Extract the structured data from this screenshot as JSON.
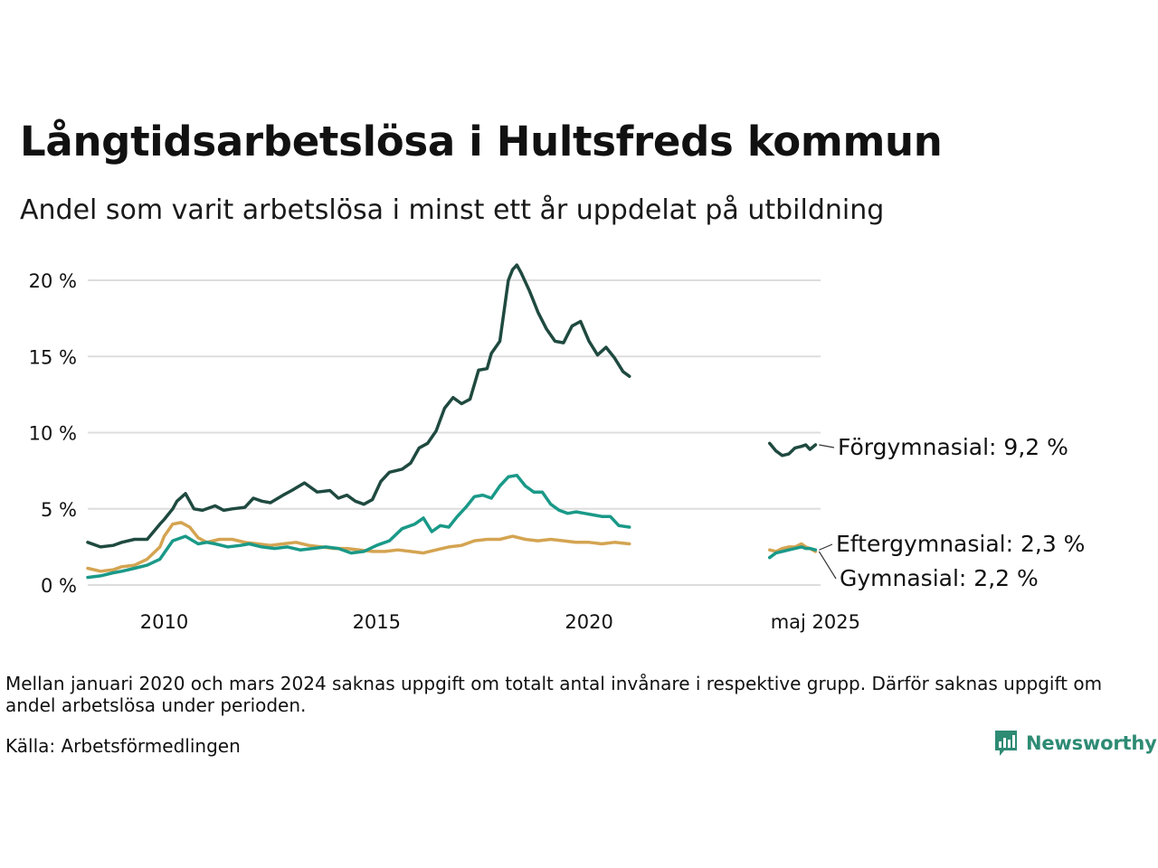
{
  "title": "Långtidsarbetslösa i Hultsfreds kommun",
  "subtitle": "Andel som varit arbetslösa i minst ett år uppdelat på utbildning",
  "note": "Mellan januari 2020 och mars 2024 saknas uppgift om totalt antal invånare i respektive grupp. Därför saknas uppgift om andel arbetslösa under perioden.",
  "source": "Källa: Arbetsförmedlingen",
  "logo_text": "Newsworthy",
  "colors": {
    "forgymnasial": "#1f4a40",
    "eftergymnasial": "#1a9988",
    "gymnasial": "#d4a451",
    "grid": "#dddddd",
    "logo": "#2e8b74"
  },
  "chart_data": {
    "type": "line",
    "ylim": [
      0,
      21
    ],
    "y_ticks": [
      0,
      5,
      10,
      15,
      20
    ],
    "y_tick_labels": [
      "0 %",
      "5 %",
      "10 %",
      "15 %",
      "20 %"
    ],
    "x_tick_labels": [
      "2010",
      "2015",
      "2020",
      "maj 2025"
    ],
    "x_tick_values": [
      2010,
      2015,
      2020,
      2025.33
    ],
    "grid": "horizontal",
    "series": [
      {
        "name": "Förgymnasial",
        "end_label": "Förgymnasial: 9,2 %",
        "segments": [
          {
            "x": [
              2008.2,
              2008.5,
              2008.8,
              2009.0,
              2009.3,
              2009.6,
              2009.9,
              2010.0,
              2010.2,
              2010.3,
              2010.5,
              2010.7,
              2010.9,
              2011.2,
              2011.4,
              2011.6,
              2011.9,
              2012.1,
              2012.3,
              2012.5,
              2012.8,
              2013.0,
              2013.3,
              2013.6,
              2013.9,
              2014.1,
              2014.3,
              2014.5,
              2014.7,
              2014.9,
              2015.1,
              2015.3,
              2015.6,
              2015.8,
              2016.0,
              2016.2,
              2016.4,
              2016.6,
              2016.8,
              2017.0,
              2017.2,
              2017.4,
              2017.6,
              2017.7,
              2017.9,
              2018.0,
              2018.1,
              2018.2,
              2018.3,
              2018.4,
              2018.6,
              2018.8,
              2019.0,
              2019.2,
              2019.4,
              2019.6,
              2019.8,
              2020.0,
              2020.2,
              2020.4,
              2020.6,
              2020.8,
              2020.95
            ],
            "y": [
              2.8,
              2.5,
              2.6,
              2.8,
              3.0,
              3.0,
              4.0,
              4.3,
              5.0,
              5.5,
              6.0,
              5.0,
              4.9,
              5.2,
              4.9,
              5.0,
              5.1,
              5.7,
              5.5,
              5.4,
              5.9,
              6.2,
              6.7,
              6.1,
              6.2,
              5.7,
              5.9,
              5.5,
              5.3,
              5.6,
              6.8,
              7.4,
              7.6,
              8.0,
              9.0,
              9.3,
              10.1,
              11.6,
              12.3,
              11.9,
              12.2,
              14.1,
              14.2,
              15.2,
              16.0,
              18.0,
              20.0,
              20.7,
              21.0,
              20.5,
              19.3,
              17.9,
              16.8,
              16.0,
              15.9,
              17.0,
              17.3,
              16.0,
              15.1,
              15.6,
              14.9,
              14.0,
              13.7
            ]
          },
          {
            "x": [
              2024.25,
              2024.4,
              2024.55,
              2024.7,
              2024.85,
              2025.0,
              2025.1,
              2025.2,
              2025.33
            ],
            "y": [
              9.3,
              8.8,
              8.5,
              8.6,
              9.0,
              9.1,
              9.2,
              8.9,
              9.2
            ]
          }
        ]
      },
      {
        "name": "Eftergymnasial",
        "end_label": "Eftergymnasial: 2,3 %",
        "segments": [
          {
            "x": [
              2008.2,
              2008.5,
              2008.8,
              2009.0,
              2009.3,
              2009.6,
              2009.9,
              2010.0,
              2010.2,
              2010.5,
              2010.8,
              2011.0,
              2011.2,
              2011.5,
              2011.8,
              2012.0,
              2012.3,
              2012.6,
              2012.9,
              2013.2,
              2013.5,
              2013.8,
              2014.1,
              2014.4,
              2014.7,
              2015.0,
              2015.3,
              2015.6,
              2015.9,
              2016.1,
              2016.3,
              2016.5,
              2016.7,
              2016.9,
              2017.1,
              2017.3,
              2017.5,
              2017.7,
              2017.9,
              2018.1,
              2018.3,
              2018.5,
              2018.7,
              2018.9,
              2019.1,
              2019.3,
              2019.5,
              2019.7,
              2019.9,
              2020.1,
              2020.3,
              2020.5,
              2020.7,
              2020.95
            ],
            "y": [
              0.5,
              0.6,
              0.8,
              0.9,
              1.1,
              1.3,
              1.7,
              2.1,
              2.9,
              3.2,
              2.7,
              2.8,
              2.7,
              2.5,
              2.6,
              2.7,
              2.5,
              2.4,
              2.5,
              2.3,
              2.4,
              2.5,
              2.4,
              2.1,
              2.2,
              2.6,
              2.9,
              3.7,
              4.0,
              4.4,
              3.5,
              3.9,
              3.8,
              4.5,
              5.1,
              5.8,
              5.9,
              5.7,
              6.5,
              7.1,
              7.2,
              6.5,
              6.1,
              6.1,
              5.3,
              4.9,
              4.7,
              4.8,
              4.7,
              4.6,
              4.5,
              4.5,
              3.9,
              3.8
            ]
          },
          {
            "x": [
              2024.25,
              2024.4,
              2024.55,
              2024.7,
              2024.85,
              2025.0,
              2025.1,
              2025.2,
              2025.33
            ],
            "y": [
              1.8,
              2.1,
              2.2,
              2.3,
              2.4,
              2.5,
              2.4,
              2.4,
              2.3
            ]
          }
        ]
      },
      {
        "name": "Gymnasial",
        "end_label": "Gymnasial: 2,2 %",
        "segments": [
          {
            "x": [
              2008.2,
              2008.5,
              2008.8,
              2009.0,
              2009.3,
              2009.6,
              2009.9,
              2010.0,
              2010.2,
              2010.4,
              2010.6,
              2010.8,
              2011.0,
              2011.3,
              2011.6,
              2011.9,
              2012.2,
              2012.5,
              2012.8,
              2013.1,
              2013.4,
              2013.7,
              2014.0,
              2014.3,
              2014.6,
              2014.9,
              2015.2,
              2015.5,
              2015.8,
              2016.1,
              2016.4,
              2016.7,
              2017.0,
              2017.3,
              2017.6,
              2017.9,
              2018.2,
              2018.5,
              2018.8,
              2019.1,
              2019.4,
              2019.7,
              2020.0,
              2020.3,
              2020.6,
              2020.95
            ],
            "y": [
              1.1,
              0.9,
              1.0,
              1.2,
              1.3,
              1.7,
              2.5,
              3.2,
              4.0,
              4.1,
              3.8,
              3.1,
              2.8,
              3.0,
              3.0,
              2.8,
              2.7,
              2.6,
              2.7,
              2.8,
              2.6,
              2.5,
              2.4,
              2.4,
              2.3,
              2.2,
              2.2,
              2.3,
              2.2,
              2.1,
              2.3,
              2.5,
              2.6,
              2.9,
              3.0,
              3.0,
              3.2,
              3.0,
              2.9,
              3.0,
              2.9,
              2.8,
              2.8,
              2.7,
              2.8,
              2.7
            ]
          },
          {
            "x": [
              2024.25,
              2024.4,
              2024.55,
              2024.7,
              2024.85,
              2025.0,
              2025.1,
              2025.2,
              2025.33
            ],
            "y": [
              2.3,
              2.2,
              2.4,
              2.5,
              2.5,
              2.7,
              2.5,
              2.4,
              2.2
            ]
          }
        ]
      }
    ]
  }
}
